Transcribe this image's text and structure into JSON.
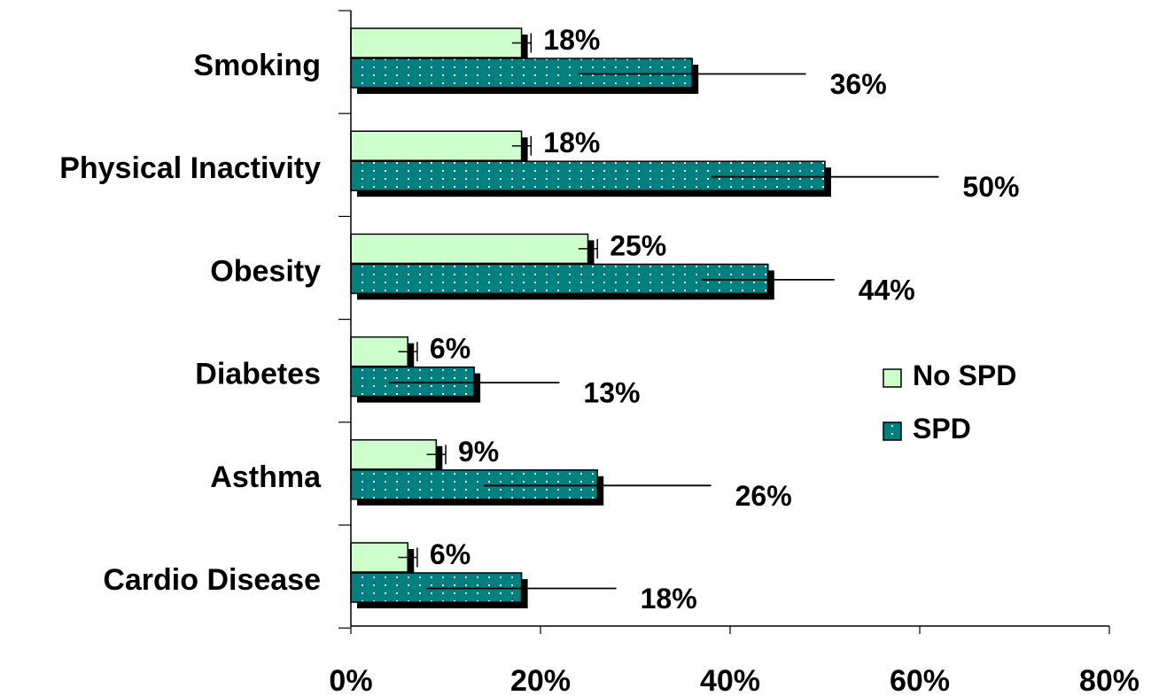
{
  "chart_data": {
    "type": "bar",
    "orientation": "horizontal",
    "categories": [
      "Smoking",
      "Physical Inactivity",
      "Obesity",
      "Diabetes",
      "Asthma",
      "Cardio Disease"
    ],
    "series": [
      {
        "name": "No SPD",
        "values": [
          18,
          18,
          25,
          6,
          9,
          6
        ],
        "labels": [
          "18%",
          "18%",
          "25%",
          "6%",
          "9%",
          "6%"
        ],
        "error_low": [
          17,
          17,
          24,
          5,
          8,
          5
        ],
        "error_high": [
          19,
          19,
          26,
          7,
          10,
          7
        ],
        "color": "#ccffcc",
        "pattern": "solid"
      },
      {
        "name": "SPD",
        "values": [
          36,
          50,
          44,
          13,
          26,
          18
        ],
        "labels": [
          "36%",
          "50%",
          "44%",
          "13%",
          "26%",
          "18%"
        ],
        "error_low": [
          24,
          38,
          37,
          4,
          14,
          8
        ],
        "error_high": [
          48,
          62,
          51,
          22,
          38,
          28
        ],
        "color": "#008080",
        "pattern": "dotted"
      }
    ],
    "x_ticks": [
      "0%",
      "20%",
      "40%",
      "60%",
      "80%"
    ],
    "xlim": [
      0,
      80
    ],
    "grid": false,
    "legend_position": "right",
    "title": "",
    "xlabel": "",
    "ylabel": ""
  }
}
